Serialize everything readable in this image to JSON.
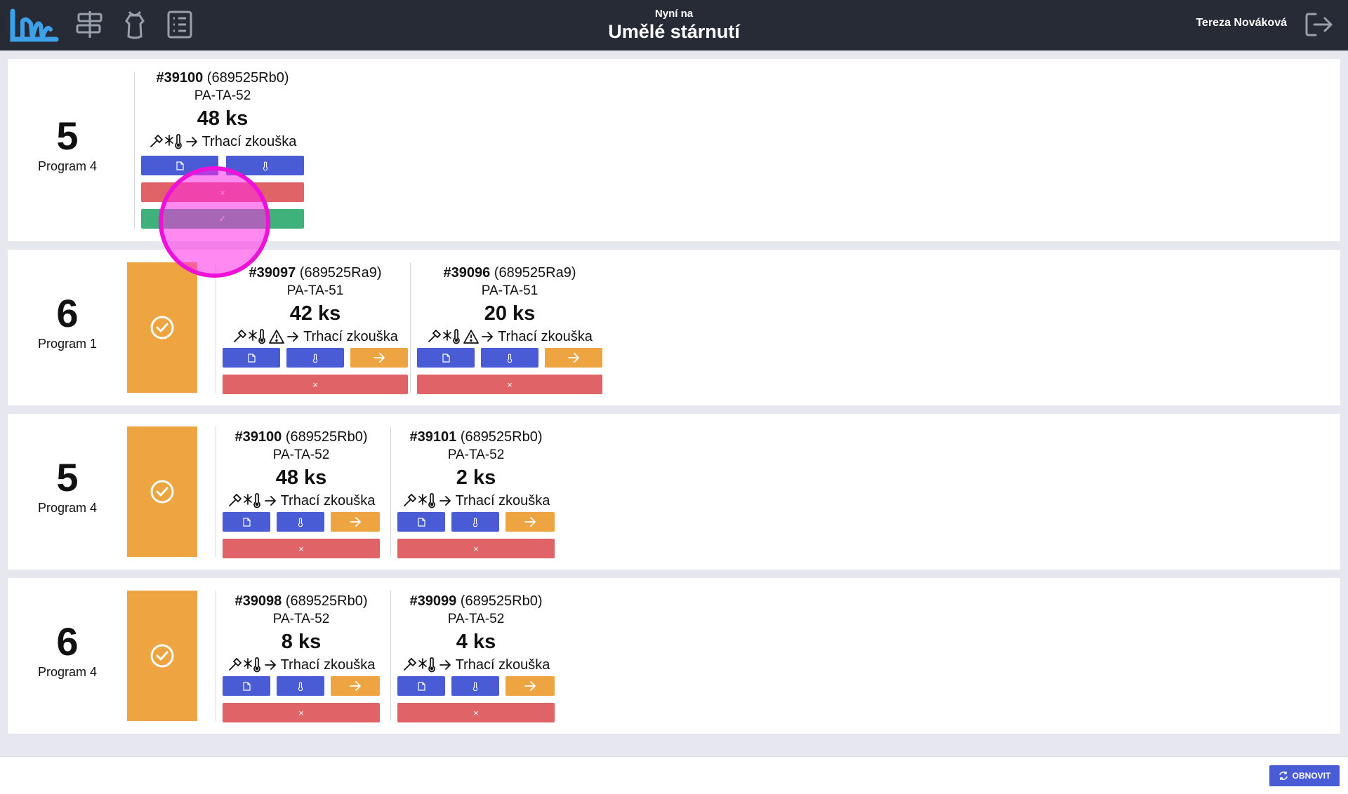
{
  "header": {
    "subtitle": "Nyní na",
    "title": "Umělé stárnutí",
    "user_name": "Tereza Nováková",
    "icons": [
      "app-logo",
      "signpost-icon",
      "apron-icon",
      "checklist-icon",
      "logout-icon"
    ]
  },
  "footer": {
    "refresh_label": "OBNOVIT",
    "refresh_icon": "refresh-icon"
  },
  "icons": {
    "document": "document-icon",
    "thermometer": "thermometer-icon",
    "arrow": "arrow-right-icon",
    "close": "close-icon",
    "check": "check-icon",
    "done": "check-circle-icon",
    "hammer": "hammer-icon",
    "snow_temp": "snowflake-thermometer-icon",
    "warning": "warning-icon"
  },
  "labels": {
    "close": "×",
    "check": "✓"
  },
  "colors": {
    "topbar": "#262b36",
    "primary": "#4a5bd6",
    "warning": "#eea440",
    "danger": "#e06467",
    "success": "#3fb27c",
    "marker": "#ee11d8"
  },
  "batches": [
    {
      "number": "5",
      "program": "Program 4",
      "completed": false,
      "items": [
        {
          "order": "#39100",
          "ref": "(689525Rb0)",
          "code": "PA-TA-52",
          "qty": "48 ks",
          "warning": false,
          "destination": "Trhací zkouška",
          "actions": [
            "document",
            "thermometer",
            "reject",
            "confirm"
          ]
        }
      ]
    },
    {
      "number": "6",
      "program": "Program 1",
      "completed": true,
      "items": [
        {
          "order": "#39097",
          "ref": "(689525Ra9)",
          "code": "PA-TA-51",
          "qty": "42 ks",
          "warning": true,
          "destination": "Trhací zkouška",
          "actions": [
            "document",
            "thermometer",
            "move",
            "reject"
          ]
        },
        {
          "order": "#39096",
          "ref": "(689525Ra9)",
          "code": "PA-TA-51",
          "qty": "20 ks",
          "warning": true,
          "destination": "Trhací zkouška",
          "actions": [
            "document",
            "thermometer",
            "move",
            "reject"
          ]
        }
      ]
    },
    {
      "number": "5",
      "program": "Program 4",
      "completed": true,
      "items": [
        {
          "order": "#39100",
          "ref": "(689525Rb0)",
          "code": "PA-TA-52",
          "qty": "48 ks",
          "warning": false,
          "destination": "Trhací zkouška",
          "actions": [
            "document",
            "thermometer",
            "move",
            "reject"
          ]
        },
        {
          "order": "#39101",
          "ref": "(689525Rb0)",
          "code": "PA-TA-52",
          "qty": "2 ks",
          "warning": false,
          "destination": "Trhací zkouška",
          "actions": [
            "document",
            "thermometer",
            "move",
            "reject"
          ]
        }
      ]
    },
    {
      "number": "6",
      "program": "Program 4",
      "completed": true,
      "items": [
        {
          "order": "#39098",
          "ref": "(689525Rb0)",
          "code": "PA-TA-52",
          "qty": "8 ks",
          "warning": false,
          "destination": "Trhací zkouška",
          "actions": [
            "document",
            "thermometer",
            "move",
            "reject"
          ]
        },
        {
          "order": "#39099",
          "ref": "(689525Rb0)",
          "code": "PA-TA-52",
          "qty": "4 ks",
          "warning": false,
          "destination": "Trhací zkouška",
          "actions": [
            "document",
            "thermometer",
            "move",
            "reject"
          ]
        }
      ]
    }
  ]
}
